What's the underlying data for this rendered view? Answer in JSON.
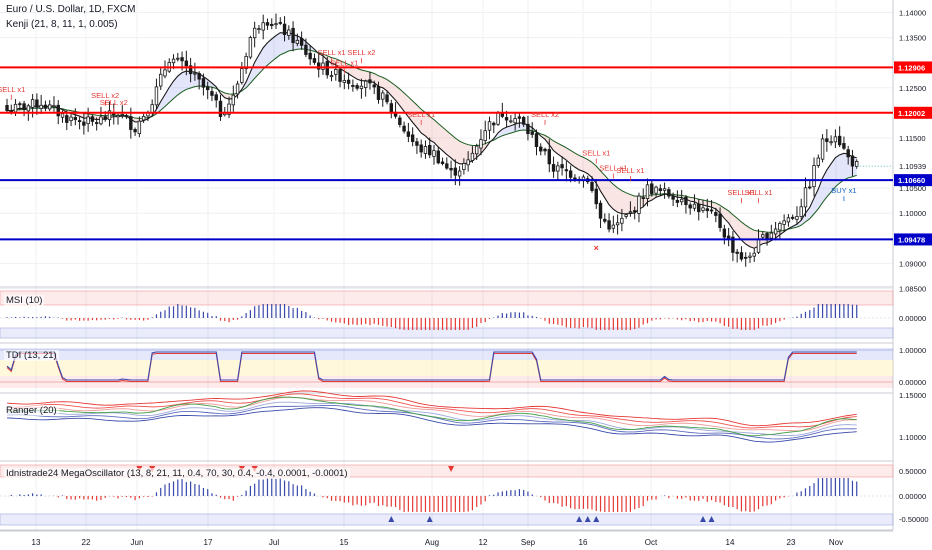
{
  "header": {
    "title": "Euro / U.S. Dollar, 1D, FXCM",
    "indicator": "Kenji (21, 8, 11, 1, 0.005)"
  },
  "panels": {
    "msi": "MSI (10)",
    "tdi": "TDI (13, 21)",
    "ranger": "Ranger (20)",
    "mega": "Idnistrade24 MegaOscillator (13, 8, 21, 11, 0.4, 70, 30, 0.4, -0.4, 0.0001, -0.0001)"
  },
  "colors": {
    "up": "#26a69a",
    "down": "#ef5350",
    "candle": "#1a1a1a",
    "resistance": "#ff0000",
    "support": "#0000c8",
    "signal": "#e53935"
  },
  "chart_data": {
    "type": "candlestick",
    "x_labels": [
      "13",
      "22",
      "Jun",
      "17",
      "Jul",
      "15",
      "Aug",
      "12",
      "Sep",
      "16",
      "Oct",
      "14",
      "23",
      "Nov"
    ],
    "price_ticks": [
      "1.14000",
      "1.13500",
      "1.12500",
      "1.12000",
      "1.11500",
      "1.10500",
      "1.10000",
      "1.09000",
      "1.08500"
    ],
    "ylim": [
      1.0855,
      1.1425
    ],
    "levels": [
      {
        "value": 1.12906,
        "label": "1.12906",
        "color": "red"
      },
      {
        "value": 1.12002,
        "label": "1.12002",
        "color": "red"
      },
      {
        "value": 1.1066,
        "label": "1.10660",
        "color": "blue"
      },
      {
        "value": 1.09478,
        "label": "1.09478",
        "color": "blue"
      }
    ],
    "last_price": {
      "value": 1.10939,
      "label": "1.10939"
    },
    "signals": [
      {
        "text": "SELL x1",
        "i": 1,
        "price": 1.1242
      },
      {
        "text": "SELL x2",
        "i": 23,
        "price": 1.123
      },
      {
        "text": "SELL x2",
        "i": 25,
        "price": 1.1216
      },
      {
        "text": "SELL x1",
        "i": 76,
        "price": 1.1315
      },
      {
        "text": "SELL x2",
        "i": 83,
        "price": 1.1315
      },
      {
        "text": "SELL x1",
        "i": 79,
        "price": 1.1294
      },
      {
        "text": "SELL x1",
        "i": 97,
        "price": 1.1192
      },
      {
        "text": "SELL x2",
        "i": 126,
        "price": 1.1192
      },
      {
        "text": "SELL x1",
        "i": 138,
        "price": 1.1115
      },
      {
        "text": "SELL x1",
        "i": 142,
        "price": 1.1085
      },
      {
        "text": "SELL x1",
        "i": 146,
        "price": 1.108
      },
      {
        "text": "SELL x1",
        "i": 172,
        "price": 1.1036
      },
      {
        "text": "SELL x1",
        "i": 176,
        "price": 1.1036
      },
      {
        "text": "BUY x1",
        "i": 196,
        "price": 1.104
      }
    ],
    "msi_ticks": [
      "0.00000"
    ],
    "tdi_ticks": [
      "1.00000",
      "0.00000"
    ],
    "ranger_ticks": [
      "1.15000",
      "1.10000"
    ],
    "mega_ticks": [
      "0.50000",
      "0.00000",
      "-0.50000"
    ]
  }
}
